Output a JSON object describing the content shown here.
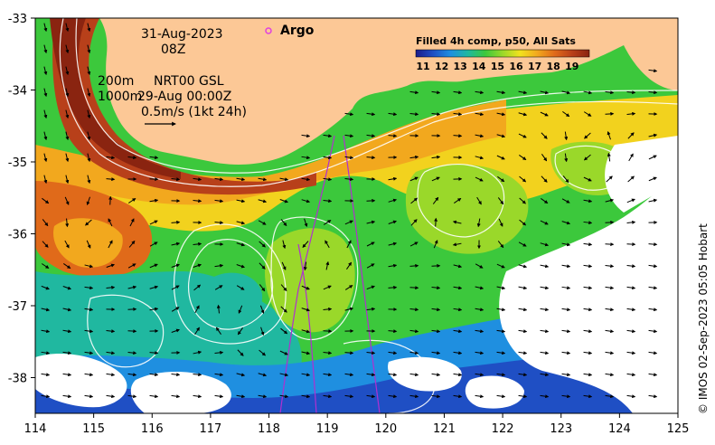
{
  "map": {
    "date": "31-Aug-2023",
    "hour": "08Z",
    "depth_label": "200m",
    "depth_label_2": "1000m",
    "product": "NRT00 GSL",
    "product_time": "29-Aug 00:00Z",
    "velocity_scale": "0.5m/s (1kt 24h)",
    "argo_label": "Argo",
    "credit": "© IMOS 02-Sep-2023 05:05 Hobart",
    "x_ticks": [
      "114",
      "115",
      "116",
      "117",
      "118",
      "119",
      "120",
      "121",
      "122",
      "123",
      "124",
      "125"
    ],
    "y_ticks": [
      "-33",
      "-34",
      "-35",
      "-36",
      "-37",
      "-38"
    ],
    "colorbar": {
      "title": "Filled 4h comp, p50, All Sats",
      "labels": [
        "11",
        "12",
        "13",
        "14",
        "15",
        "16",
        "17",
        "18",
        "19"
      ],
      "colors": [
        "#1b1b8a",
        "#1f4fc4",
        "#1f8fe0",
        "#20b8a0",
        "#3cc83c",
        "#9ad82a",
        "#f2e21e",
        "#f2a81e",
        "#e06a1a",
        "#b8401a",
        "#8a2410"
      ]
    },
    "colors": {
      "land": "#fcc896",
      "cloud": "#ffffff",
      "argo": "#e040e0",
      "track": "#b030d0"
    }
  }
}
